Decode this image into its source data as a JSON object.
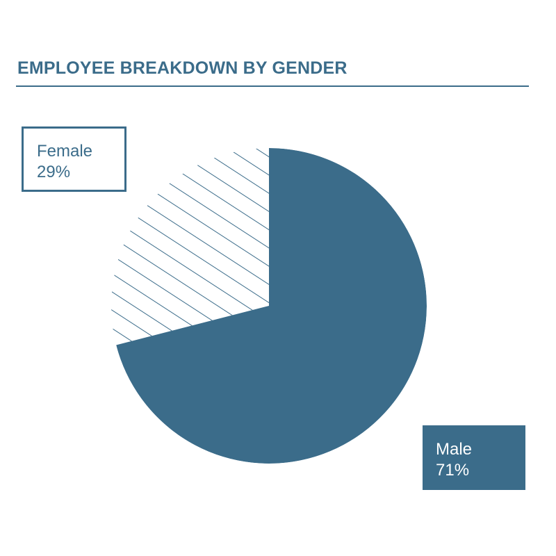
{
  "colors": {
    "accent": "#3b6c8a",
    "background": "#ffffff"
  },
  "chart_data": {
    "type": "pie",
    "title": "EMPLOYEE BREAKDOWN BY GENDER",
    "slices": [
      {
        "label": "Female",
        "value": 29,
        "value_label": "29%",
        "fill": "hatched",
        "color": "#3b6c8a"
      },
      {
        "label": "Male",
        "value": 71,
        "value_label": "71%",
        "fill": "solid",
        "color": "#3b6c8a"
      }
    ],
    "legend": "callout-boxes",
    "start_angle": "12 o'clock, Male clockwise"
  }
}
